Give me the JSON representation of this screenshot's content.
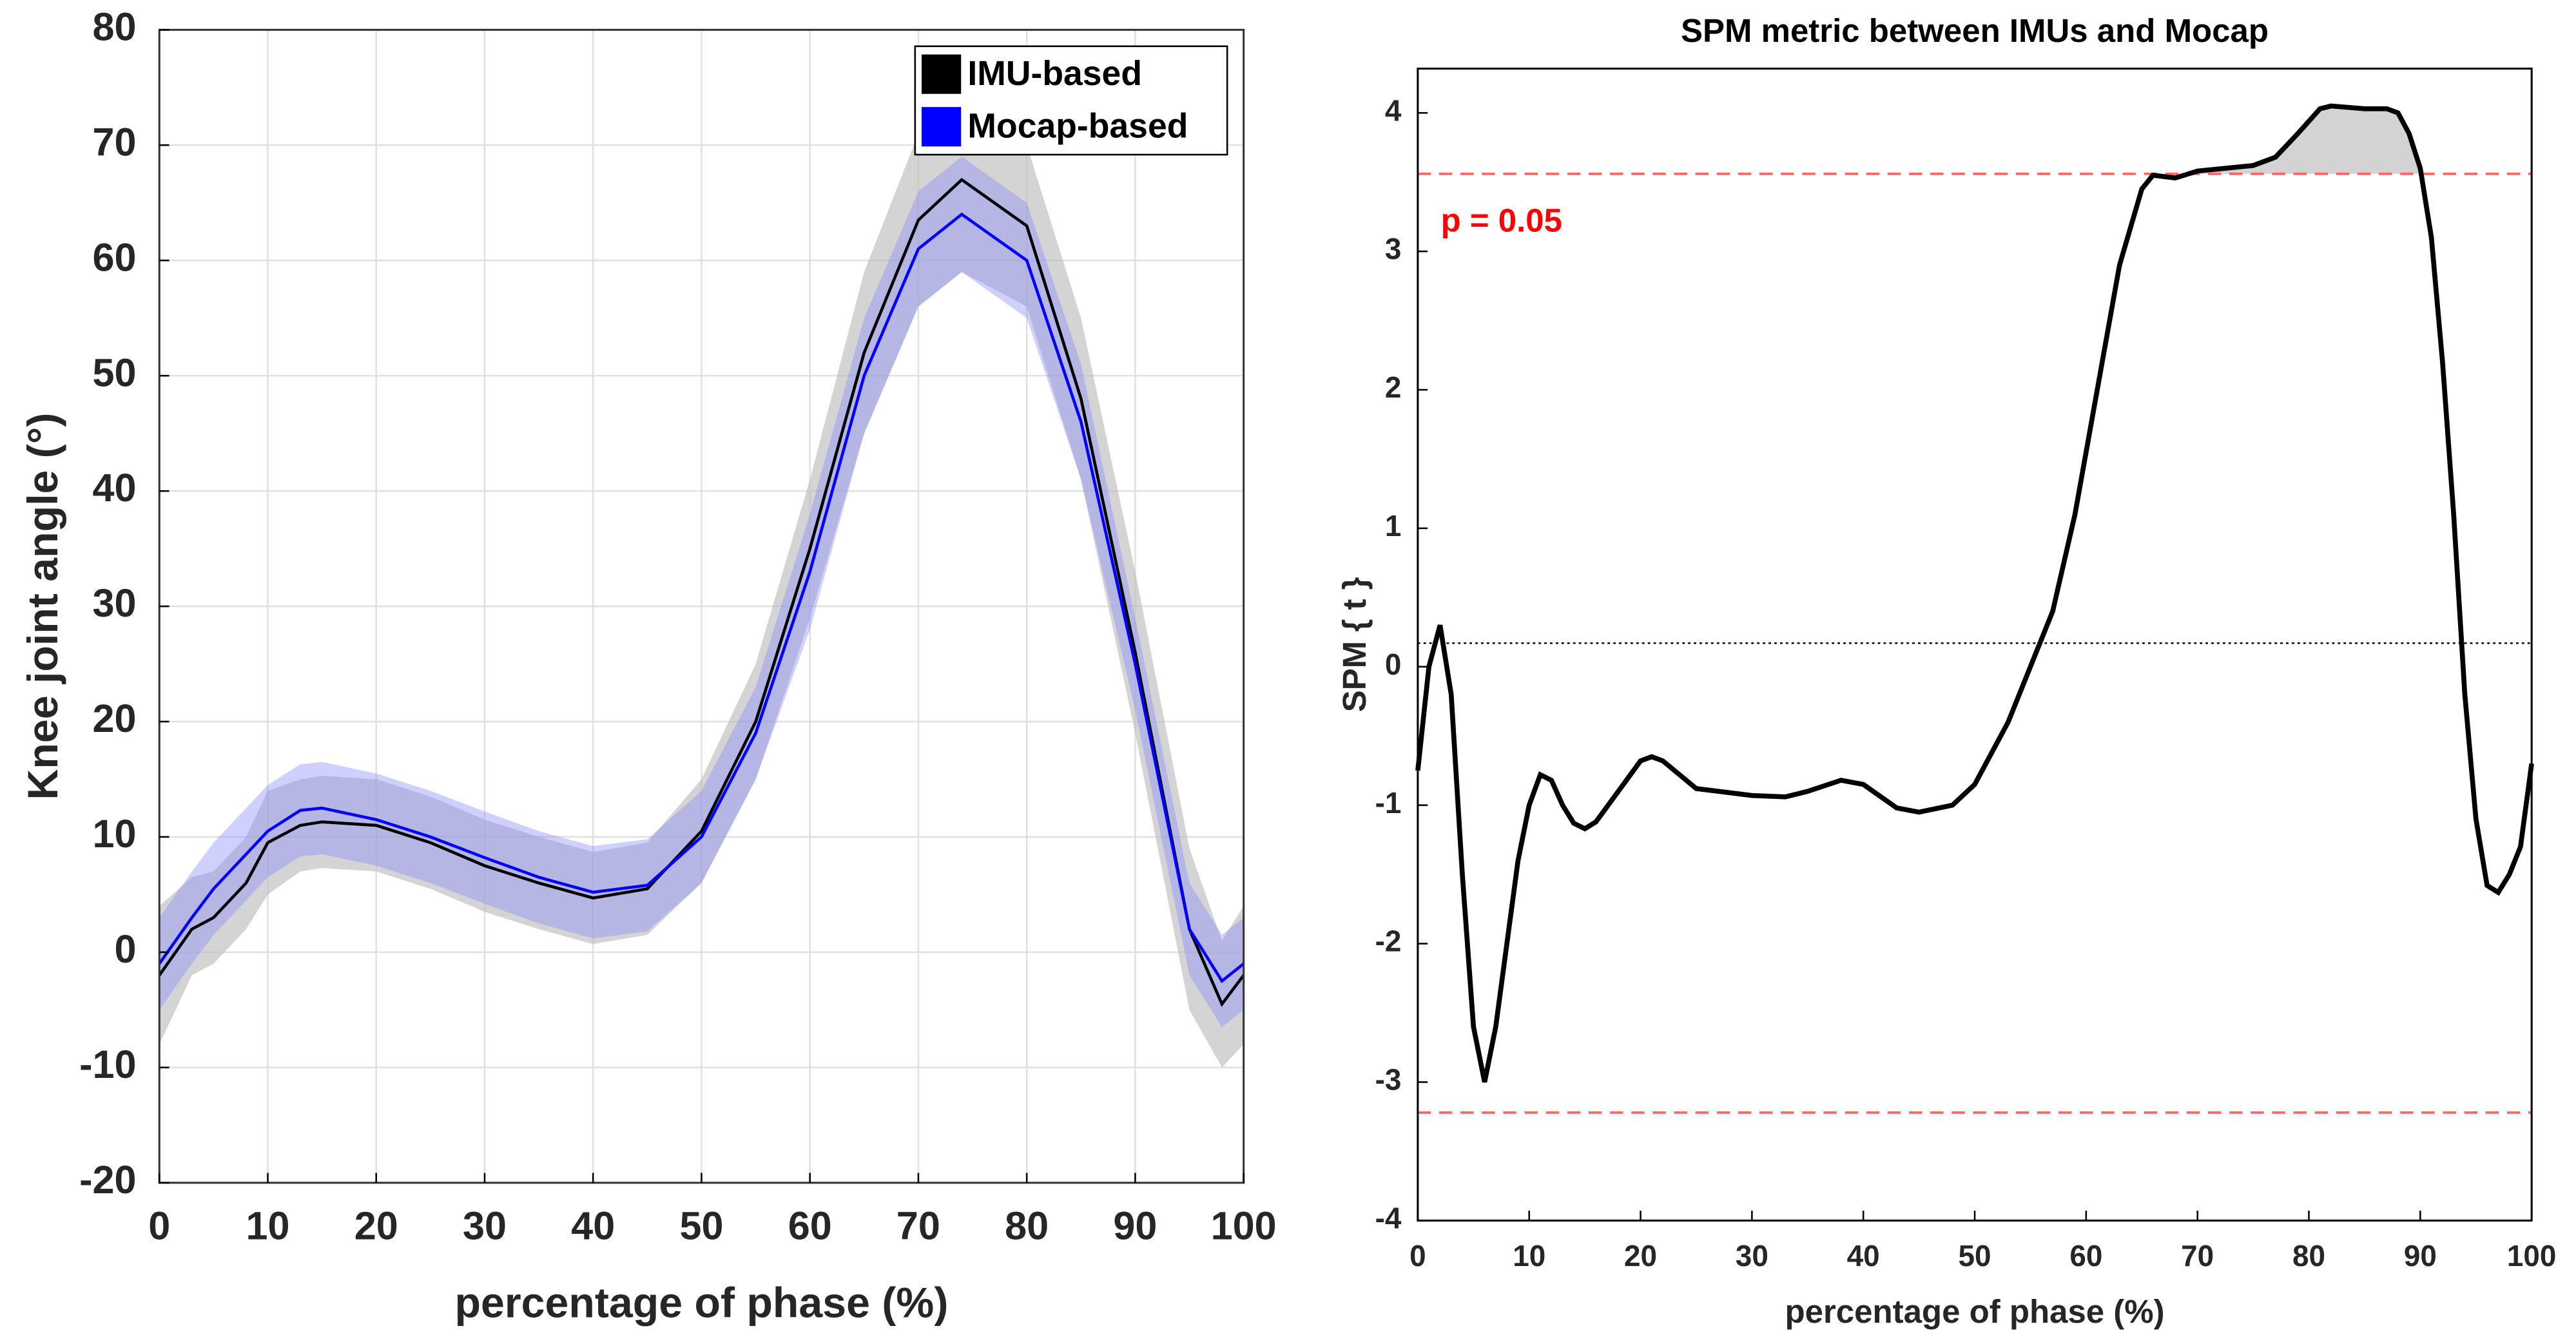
{
  "chart_data": [
    {
      "type": "band-line",
      "xlabel": "percentage of phase (%)",
      "ylabel": "Knee joint angle (°)",
      "x": [
        0,
        3,
        5,
        8,
        10,
        13,
        15,
        20,
        25,
        30,
        35,
        40,
        45,
        50,
        55,
        60,
        65,
        70,
        74,
        80,
        85,
        90,
        95,
        98,
        100
      ],
      "series": [
        {
          "name": "IMU-based",
          "color": "#000000",
          "band_color": "#bdbdbd",
          "values": [
            -2,
            2,
            3,
            6,
            9.5,
            11,
            11.3,
            11,
            9.5,
            7.5,
            6,
            4.7,
            5.5,
            10.5,
            20,
            35,
            52,
            63.5,
            67,
            63,
            48,
            26,
            2,
            -4.5,
            -2
          ],
          "lower": [
            -8,
            -2,
            -1,
            2,
            5,
            7,
            7.3,
            7,
            5.5,
            3.5,
            2,
            0.7,
            1.5,
            6,
            15,
            29,
            45,
            56,
            59,
            56,
            41,
            19,
            -5,
            -10,
            -8
          ],
          "upper": [
            4,
            6.5,
            7,
            10,
            14,
            15,
            15.3,
            15,
            13.5,
            11.5,
            10,
            8.7,
            9.5,
            15,
            25,
            41,
            59,
            71,
            73,
            70,
            55,
            33,
            9,
            1,
            4
          ]
        },
        {
          "name": "Mocap-based",
          "color": "#0000ff",
          "band_color": "#8a8aff",
          "values": [
            -1,
            3,
            5.5,
            8.5,
            10.5,
            12.3,
            12.5,
            11.5,
            10,
            8.2,
            6.5,
            5.2,
            5.8,
            10,
            19,
            33,
            50,
            61,
            64,
            60,
            46,
            25,
            2,
            -2.5,
            -1
          ],
          "lower": [
            -5,
            -1,
            1.5,
            4.5,
            6.5,
            8.3,
            8.5,
            7.5,
            6,
            4.2,
            2.5,
            1.2,
            1.8,
            6,
            15,
            28,
            45,
            56,
            59,
            55,
            41,
            21,
            -2,
            -6.5,
            -5
          ],
          "upper": [
            3,
            7,
            9.5,
            12.5,
            14.5,
            16.3,
            16.5,
            15.5,
            14,
            12.2,
            10.5,
            9.2,
            9.8,
            14,
            23,
            38,
            55,
            66,
            69,
            65,
            51,
            29,
            6,
            1.5,
            3
          ]
        }
      ],
      "xlim": [
        0,
        100
      ],
      "xticks": [
        0,
        10,
        20,
        30,
        40,
        50,
        60,
        70,
        80,
        90,
        100
      ],
      "ylim": [
        -20,
        80
      ],
      "yticks": [
        -20,
        -10,
        0,
        10,
        20,
        30,
        40,
        50,
        60,
        70,
        80
      ],
      "grid": true,
      "legend": "upper right"
    },
    {
      "type": "spm",
      "title": "SPM metric between IMUs and Mocap",
      "xlabel": "percentage of phase (%)",
      "ylabel": "SPM { t }",
      "x": [
        0,
        1,
        2,
        3,
        4,
        5,
        6,
        7,
        8,
        9,
        10,
        11,
        12,
        13,
        14,
        15,
        16,
        18,
        20,
        21,
        22,
        25,
        30,
        33,
        35,
        38,
        40,
        43,
        45,
        48,
        50,
        53,
        55,
        57,
        59,
        61,
        63,
        65,
        66,
        68,
        70,
        75,
        77,
        79,
        81,
        82,
        85,
        87,
        88,
        89,
        90,
        91,
        92,
        93,
        94,
        95,
        96,
        97,
        98,
        99,
        100
      ],
      "series": [
        {
          "name": "SPM",
          "color": "#000000",
          "values": [
            -0.75,
            0,
            0.3,
            -0.2,
            -1.5,
            -2.6,
            -3,
            -2.6,
            -2,
            -1.4,
            -1,
            -0.78,
            -0.82,
            -1,
            -1.13,
            -1.17,
            -1.12,
            -0.9,
            -0.68,
            -0.65,
            -0.68,
            -0.88,
            -0.93,
            -0.94,
            -0.9,
            -0.82,
            -0.85,
            -1.02,
            -1.05,
            -1,
            -0.85,
            -0.4,
            0,
            0.4,
            1.1,
            2,
            2.9,
            3.45,
            3.55,
            3.53,
            3.58,
            3.62,
            3.68,
            3.85,
            4.03,
            4.05,
            4.03,
            4.03,
            4,
            3.85,
            3.6,
            3.1,
            2.2,
            1.1,
            -0.2,
            -1.1,
            -1.58,
            -1.63,
            -1.5,
            -1.3,
            -0.7
          ]
        }
      ],
      "thresholds": [
        3.56,
        -3.22
      ],
      "threshold_color": "#ff6666",
      "reference_line": 0.17,
      "annotation": "p = 0.05",
      "annotation_color": "#ff0000",
      "fill_color": "#d3d3d3",
      "xlim": [
        0,
        100
      ],
      "xticks": [
        0,
        10,
        20,
        30,
        40,
        50,
        60,
        70,
        80,
        90,
        100
      ],
      "ylim": [
        -4,
        4.32
      ],
      "yticks": [
        -4,
        -3,
        -2,
        -1,
        0,
        1,
        2,
        3,
        4
      ],
      "grid": false
    }
  ]
}
